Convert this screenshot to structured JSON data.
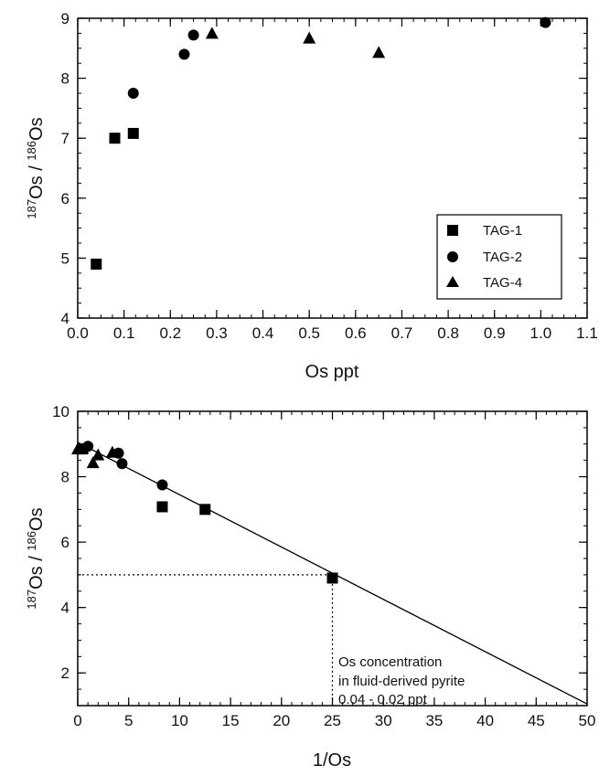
{
  "chart_data": [
    {
      "type": "scatter",
      "title": "",
      "xlabel": "Os ppt",
      "ylabel": {
        "iso1": "187",
        "el1": "Os / ",
        "iso2": "186",
        "el2": "Os"
      },
      "xlim": [
        0,
        1.1
      ],
      "ylim": [
        4,
        9
      ],
      "x_ticks": [
        "0.0",
        "0.1",
        "0.2",
        "0.3",
        "0.4",
        "0.5",
        "0.6",
        "0.7",
        "0.8",
        "0.9",
        "1.0",
        "1.1"
      ],
      "y_ticks": [
        "4",
        "5",
        "6",
        "7",
        "8",
        "9"
      ],
      "grid": false,
      "legend_position": "bottom-right",
      "series": [
        {
          "name": "TAG-1",
          "marker": "square",
          "x": [
            0.04,
            0.08,
            0.12
          ],
          "y": [
            4.9,
            7.0,
            7.08
          ]
        },
        {
          "name": "TAG-2",
          "marker": "circle",
          "x": [
            0.12,
            0.23,
            0.25,
            1.01
          ],
          "y": [
            7.75,
            8.4,
            8.72,
            8.93
          ]
        },
        {
          "name": "TAG-4",
          "marker": "triangle",
          "x": [
            0.29,
            0.5,
            0.65
          ],
          "y": [
            8.75,
            8.67,
            8.43
          ]
        }
      ]
    },
    {
      "type": "scatter",
      "title": "",
      "xlabel": "1/Os",
      "ylabel": {
        "iso1": "187",
        "el1": "Os / ",
        "iso2": "186",
        "el2": "Os"
      },
      "xlim": [
        0,
        50
      ],
      "ylim": [
        1,
        10
      ],
      "x_ticks": [
        "0",
        "5",
        "10",
        "15",
        "20",
        "25",
        "30",
        "35",
        "40",
        "45",
        "50"
      ],
      "y_ticks": [
        "2",
        "4",
        "6",
        "8",
        "10"
      ],
      "grid": false,
      "series": [
        {
          "marker": "square",
          "x": [
            0.5,
            8.3,
            12.5,
            25
          ],
          "y": [
            8.85,
            7.08,
            7.0,
            4.9
          ]
        },
        {
          "marker": "circle",
          "x": [
            1.0,
            4.0,
            4.35,
            8.3
          ],
          "y": [
            8.93,
            8.72,
            8.4,
            7.75
          ]
        },
        {
          "marker": "triangle",
          "x": [
            0.0,
            1.5,
            2.0,
            3.4
          ],
          "y": [
            8.85,
            8.43,
            8.67,
            8.75
          ]
        }
      ],
      "fit_line": {
        "x": [
          0,
          50
        ],
        "y": [
          9.05,
          1.05
        ]
      },
      "reference_lines": {
        "x": 25,
        "y": 5.0
      },
      "annotation": [
        "Os concentration",
        "in fluid-derived pyrite",
        "0.04  -  0.02 ppt"
      ]
    }
  ]
}
